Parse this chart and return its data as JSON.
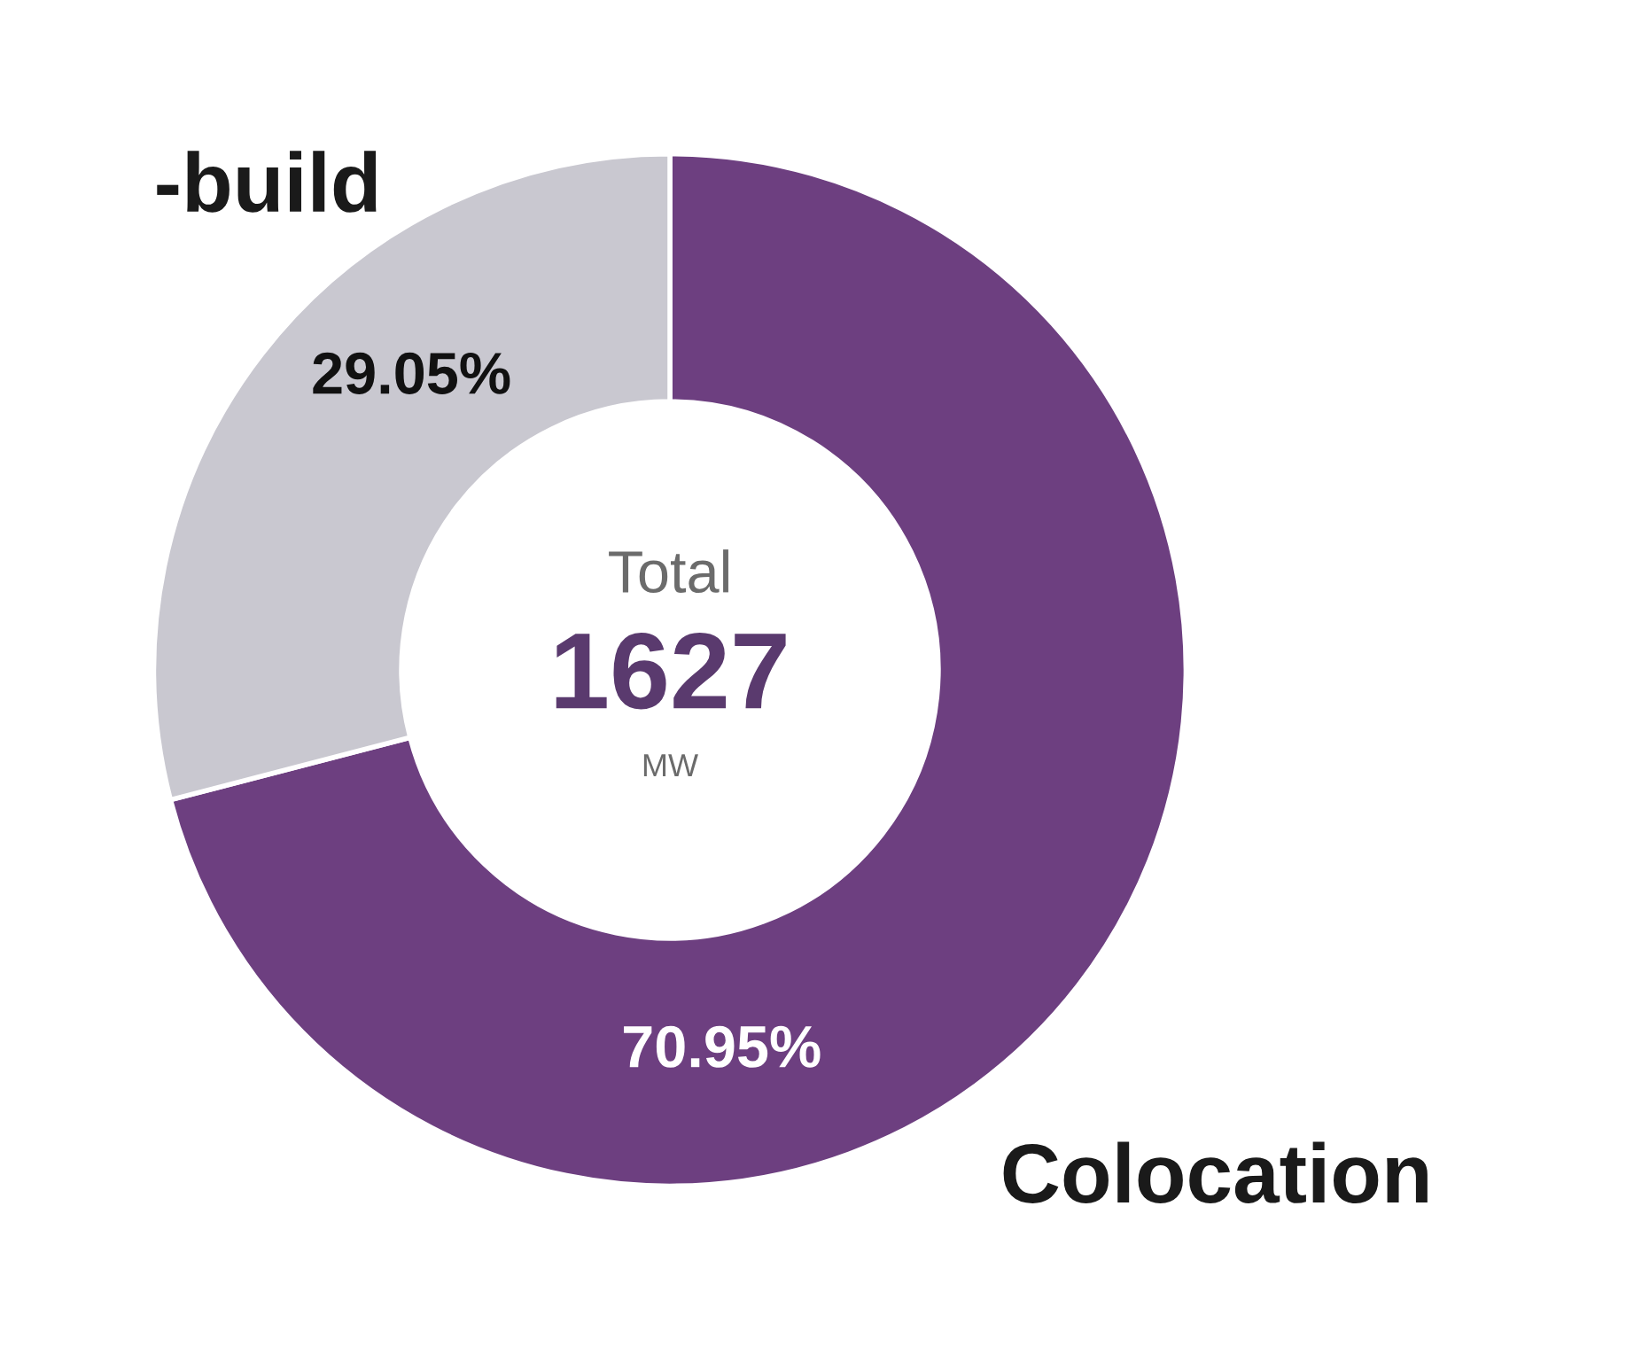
{
  "chart_data": {
    "type": "donut",
    "categories": [
      "Colocation",
      "-build"
    ],
    "values": [
      70.95,
      29.05
    ],
    "colors": [
      "#6d3f80",
      "#c9c8d0"
    ],
    "value_labels": [
      "70.95%",
      "29.05%"
    ],
    "annotations": [
      "Total",
      "1627",
      "MW"
    ],
    "legend": false
  }
}
